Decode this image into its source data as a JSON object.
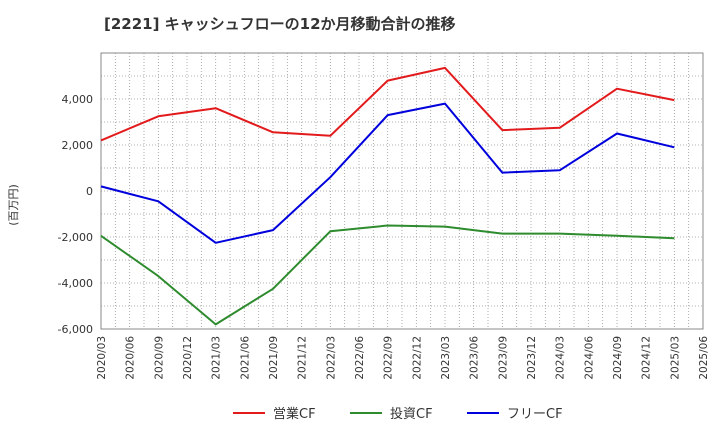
{
  "chart_data": {
    "type": "line",
    "title": "[2221]  キャッシュフローの12か月移動合計の推移",
    "xlabel": "",
    "ylabel": "(百万円)",
    "categories": [
      "2020/03",
      "2020/06",
      "2020/09",
      "2020/12",
      "2021/03",
      "2021/06",
      "2021/09",
      "2021/12",
      "2022/03",
      "2022/06",
      "2022/09",
      "2022/12",
      "2023/03",
      "2023/06",
      "2023/09",
      "2023/12",
      "2024/03",
      "2024/06",
      "2024/09",
      "2024/12",
      "2025/03",
      "2025/06"
    ],
    "ylim": [
      -6000,
      6000
    ],
    "yticks": [
      4000,
      2000,
      0,
      -2000,
      -4000,
      -6000
    ],
    "ytick_labels": [
      "4,000",
      "2,000",
      "0",
      "-2,000",
      "-4,000",
      "-6,000"
    ],
    "grid": true,
    "legend_position": "bottom-center",
    "series": [
      {
        "name": "営業CF",
        "color": "#e31a1c",
        "x": [
          "2020/03",
          "2020/09",
          "2021/03",
          "2021/09",
          "2022/03",
          "2022/09",
          "2023/03",
          "2023/09",
          "2024/03",
          "2024/09",
          "2025/03"
        ],
        "values": [
          2200,
          3250,
          3600,
          2550,
          2400,
          4800,
          5350,
          2650,
          2750,
          4450,
          3950
        ]
      },
      {
        "name": "投資CF",
        "color": "#2e8b2e",
        "x": [
          "2020/03",
          "2020/09",
          "2021/03",
          "2021/09",
          "2022/03",
          "2022/09",
          "2023/03",
          "2023/09",
          "2024/03",
          "2024/09",
          "2025/03"
        ],
        "values": [
          -1950,
          -3700,
          -5800,
          -4250,
          -1750,
          -1500,
          -1550,
          -1850,
          -1850,
          -1950,
          -2050
        ]
      },
      {
        "name": "フリーCF",
        "color": "#0000dd",
        "x": [
          "2020/03",
          "2020/09",
          "2021/03",
          "2021/09",
          "2022/03",
          "2022/09",
          "2023/03",
          "2023/09",
          "2024/03",
          "2024/09",
          "2025/03"
        ],
        "values": [
          200,
          -450,
          -2250,
          -1700,
          600,
          3300,
          3800,
          800,
          900,
          2500,
          1900
        ]
      }
    ]
  }
}
